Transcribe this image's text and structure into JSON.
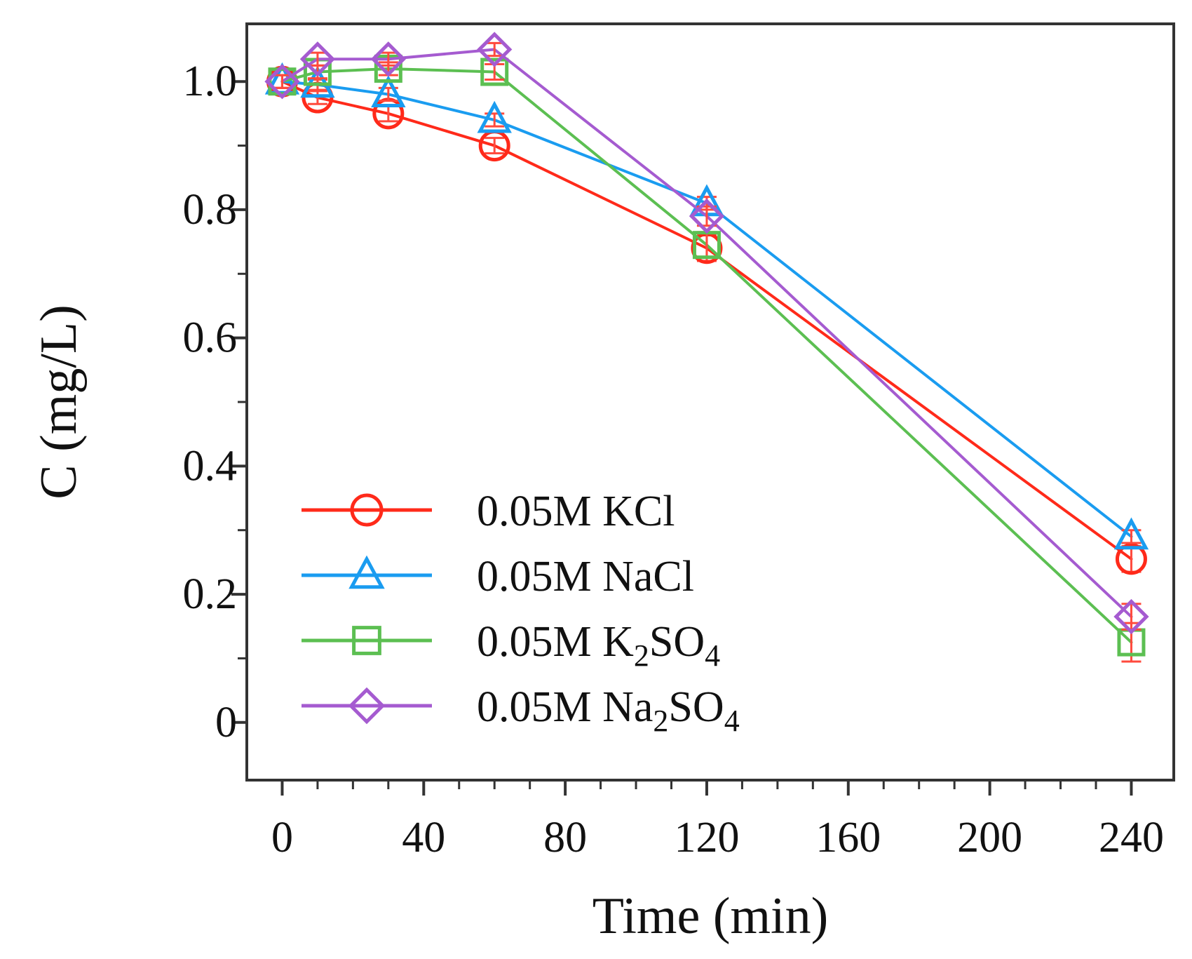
{
  "chart_data": {
    "type": "line",
    "title": "",
    "xlabel": "Time (min)",
    "ylabel": "C  (mg/L)",
    "xlim": [
      -10,
      252
    ],
    "ylim": [
      -0.09,
      1.09
    ],
    "xticks": [
      0,
      40,
      80,
      120,
      160,
      200,
      240
    ],
    "xtick_labels": [
      "0",
      "40",
      "80",
      "120",
      "160",
      "200",
      "240"
    ],
    "yticks": [
      0,
      0.2,
      0.4,
      0.6,
      0.8,
      1.0
    ],
    "ytick_labels": [
      "0",
      "0.2",
      "0.4",
      "0.6",
      "0.8",
      "1.0"
    ],
    "grid": false,
    "legend_position": "bottom-left",
    "x": [
      0,
      10,
      30,
      60,
      120,
      240
    ],
    "series": [
      {
        "name": "0.05M KCl",
        "legend_main": "0.05M KCl",
        "legend_sub": "",
        "legend_tail": "",
        "color": "#ff2a1a",
        "marker": "circle",
        "values": [
          1.0,
          0.975,
          0.95,
          0.9,
          0.74,
          0.255
        ],
        "errors": [
          0.01,
          0.01,
          0.012,
          0.012,
          0.02,
          0.02
        ]
      },
      {
        "name": "0.05M NaCl",
        "legend_main": "0.05M NaCl",
        "legend_sub": "",
        "legend_tail": "",
        "color": "#1a9cf0",
        "marker": "triangle",
        "values": [
          1.0,
          0.995,
          0.98,
          0.94,
          0.81,
          0.29
        ],
        "errors": [
          0.01,
          0.008,
          0.01,
          0.01,
          0.01,
          0.01
        ]
      },
      {
        "name": "0.05M K2SO4",
        "legend_main": "0.05M K",
        "legend_sub": "2",
        "legend_tail": "SO",
        "legend_sub2": "4",
        "color": "#5cbf52",
        "marker": "square",
        "values": [
          1.0,
          1.015,
          1.02,
          1.015,
          0.745,
          0.125
        ],
        "errors": [
          0.01,
          0.01,
          0.01,
          0.012,
          0.02,
          0.03
        ]
      },
      {
        "name": "0.05M Na2SO4",
        "legend_main": "0.05M Na",
        "legend_sub": "2",
        "legend_tail": "SO",
        "legend_sub2": "4",
        "color": "#a55bd0",
        "marker": "diamond",
        "values": [
          1.0,
          1.035,
          1.035,
          1.05,
          0.79,
          0.165
        ],
        "errors": [
          0.01,
          0.01,
          0.01,
          0.01,
          0.015,
          0.02
        ]
      }
    ]
  }
}
